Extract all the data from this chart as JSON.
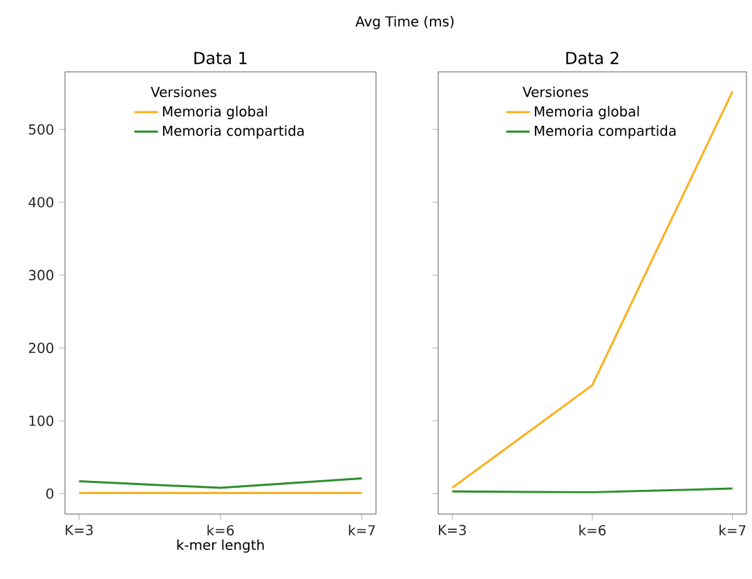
{
  "chart_data": [
    {
      "type": "line",
      "title": "Data 1",
      "annotations": [
        "Avg Time (ms)"
      ],
      "xlabel": "k-mer length",
      "categories": [
        "K=3",
        "k=6",
        "k=7"
      ],
      "ylim": [
        -28,
        579
      ],
      "yticks": [
        0,
        100,
        200,
        300,
        400,
        500
      ],
      "legend": "top",
      "legend_title": "Versiones",
      "series": [
        {
          "name": "Memoria global",
          "color": "#ffae1a",
          "values": [
            1,
            1,
            1
          ]
        },
        {
          "name": "Memoria compartida",
          "color": "#2a8f2a",
          "values": [
            17,
            8,
            21
          ]
        }
      ]
    },
    {
      "type": "line",
      "title": "Data 2",
      "categories": [
        "K=3",
        "k=6",
        "k=7"
      ],
      "ylim": [
        -28,
        579
      ],
      "yticks": [
        0,
        100,
        200,
        300,
        400,
        500
      ],
      "tick_labels": "x",
      "legend": "top",
      "legend_title": "Versiones",
      "series": [
        {
          "name": "Memoria global",
          "color": "#ffae1a",
          "values": [
            8,
            149,
            552
          ]
        },
        {
          "name": "Memoria compartida",
          "color": "#2a8f2a",
          "values": [
            3,
            2,
            7
          ]
        }
      ]
    }
  ]
}
